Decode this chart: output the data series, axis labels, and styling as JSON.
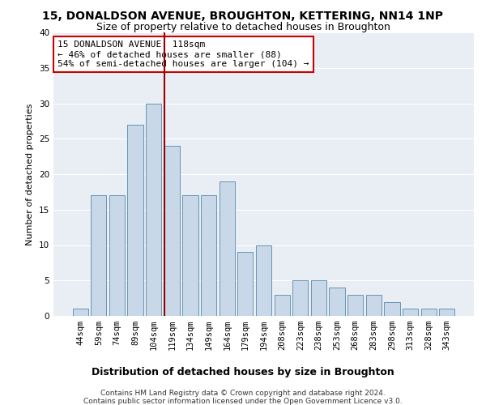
{
  "title": "15, DONALDSON AVENUE, BROUGHTON, KETTERING, NN14 1NP",
  "subtitle": "Size of property relative to detached houses in Broughton",
  "xlabel": "Distribution of detached houses by size in Broughton",
  "ylabel": "Number of detached properties",
  "categories": [
    "44sqm",
    "59sqm",
    "74sqm",
    "89sqm",
    "104sqm",
    "119sqm",
    "134sqm",
    "149sqm",
    "164sqm",
    "179sqm",
    "194sqm",
    "208sqm",
    "223sqm",
    "238sqm",
    "253sqm",
    "268sqm",
    "283sqm",
    "298sqm",
    "313sqm",
    "328sqm",
    "343sqm"
  ],
  "values": [
    1,
    17,
    17,
    27,
    30,
    24,
    17,
    17,
    19,
    9,
    10,
    3,
    5,
    5,
    4,
    3,
    3,
    2,
    1,
    1,
    1
  ],
  "bar_color": "#c8d8e8",
  "bar_edge_color": "#5588aa",
  "marker_line_index": 5,
  "marker_line_color": "#990000",
  "annotation_text": "15 DONALDSON AVENUE: 118sqm\n← 46% of detached houses are smaller (88)\n54% of semi-detached houses are larger (104) →",
  "annotation_box_color": "#ffffff",
  "annotation_box_edge_color": "#cc0000",
  "ylim": [
    0,
    40
  ],
  "yticks": [
    0,
    5,
    10,
    15,
    20,
    25,
    30,
    35,
    40
  ],
  "footer_line1": "Contains HM Land Registry data © Crown copyright and database right 2024.",
  "footer_line2": "Contains public sector information licensed under the Open Government Licence v3.0.",
  "fig_bg_color": "#ffffff",
  "plot_bg_color": "#e8eef4",
  "grid_color": "#ffffff",
  "title_fontsize": 10,
  "subtitle_fontsize": 9,
  "xlabel_fontsize": 9,
  "ylabel_fontsize": 8,
  "tick_fontsize": 7.5,
  "annotation_fontsize": 8,
  "footer_fontsize": 6.5
}
